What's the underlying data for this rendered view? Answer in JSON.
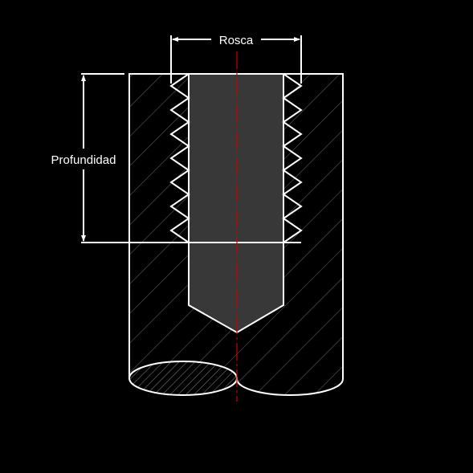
{
  "labels": {
    "thread": "Rosca",
    "depth": "Profundidad"
  },
  "colors": {
    "background": "#000000",
    "line": "#ffffff",
    "hatch": "#555555",
    "bore_fill": "#383838",
    "centerline": "#cc0000"
  }
}
